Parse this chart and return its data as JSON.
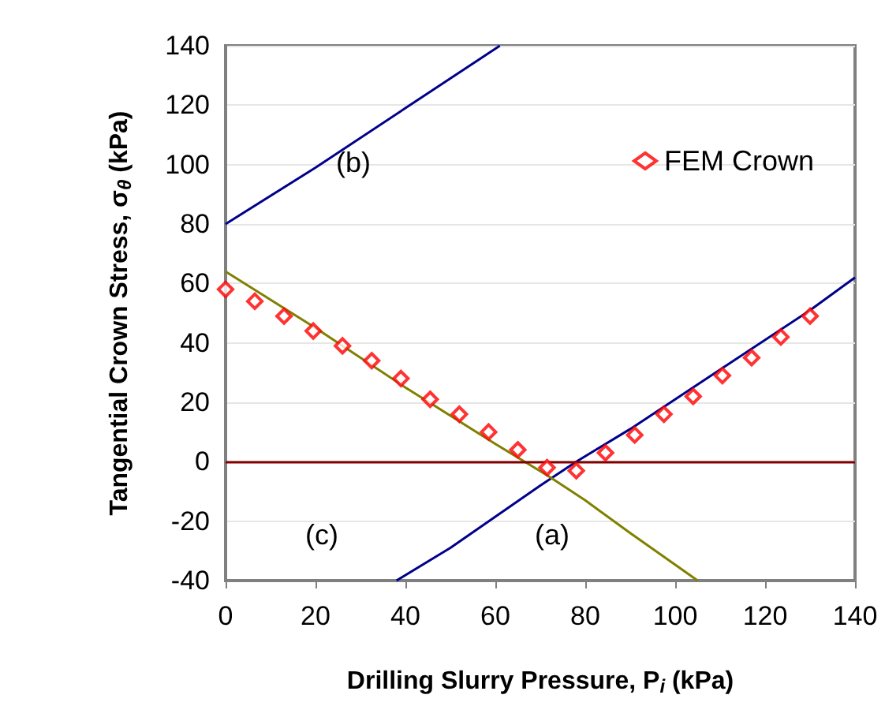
{
  "chart_data": {
    "type": "line",
    "xlabel": "Drilling Slurry Pressure, P$_{i}$ (kPa)",
    "ylabel": "Tangential Crown Stress, σ$_{θ}$ (kPa)",
    "xlim": [
      0,
      140
    ],
    "xticks": [
      0,
      20,
      40,
      60,
      80,
      100,
      120,
      140
    ],
    "ylim": [
      -40,
      140
    ],
    "yticks": [
      -40,
      -20,
      0,
      20,
      40,
      60,
      80,
      100,
      120,
      140
    ],
    "grid": "y",
    "legend": "top right",
    "series": [
      {
        "color": "#00008b",
        "marker": "none",
        "x": [
          38,
          50,
          70,
          78,
          90,
          110,
          130,
          140
        ],
        "values": [
          -40,
          -29,
          -8,
          0,
          11,
          31,
          51,
          62
        ]
      },
      {
        "color": "#00008b",
        "marker": "none",
        "x": [
          0,
          20,
          40,
          61
        ],
        "values": [
          80,
          99,
          119,
          140
        ]
      },
      {
        "color": "#808000",
        "marker": "none",
        "x": [
          0,
          20,
          40,
          60,
          72,
          80,
          90,
          105
        ],
        "values": [
          64,
          45,
          25,
          6,
          -5,
          -13,
          -24,
          -40
        ]
      },
      {
        "type": "scatter",
        "name": "FEM Crown",
        "color": "#ff0000",
        "marker": "diamond",
        "x": [
          0,
          6.5,
          13,
          19.5,
          26,
          32.5,
          39,
          45.5,
          52,
          58.5,
          65,
          71.5,
          78,
          84.5,
          91,
          97.5,
          104,
          110.5,
          117,
          123.5,
          130
        ],
        "values": [
          58,
          54,
          49,
          44,
          39,
          34,
          28,
          21,
          16,
          10,
          4,
          -2,
          -3,
          3,
          9,
          16,
          22,
          29,
          35,
          42,
          49
        ]
      }
    ],
    "ref_lines": [
      {
        "axis": "y",
        "value": 0,
        "color": "#800000"
      }
    ],
    "annotations": [
      "(a)",
      "(b)",
      "(c)"
    ]
  }
}
